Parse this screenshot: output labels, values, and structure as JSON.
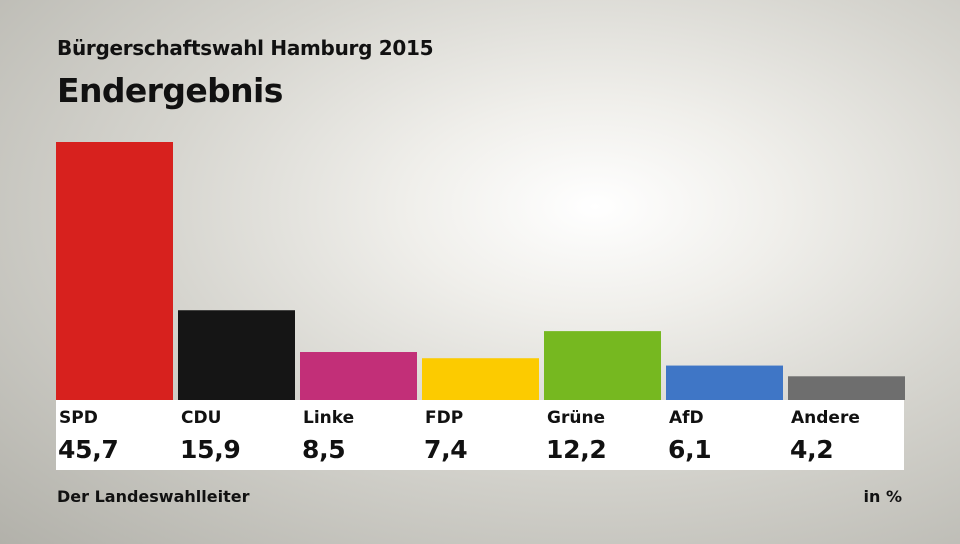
{
  "header": {
    "supertitle": "Bürgerschaftswahl Hamburg 2015",
    "title": "Endergebnis"
  },
  "footer": {
    "source": "Der Landeswahlleiter",
    "unit": "in %"
  },
  "chart_data": {
    "type": "bar",
    "title": "Endergebnis",
    "categories": [
      "SPD",
      "CDU",
      "Linke",
      "FDP",
      "Grüne",
      "AfD",
      "Andere"
    ],
    "values": [
      45.7,
      15.9,
      8.5,
      7.4,
      12.2,
      6.1,
      4.2
    ],
    "value_labels": [
      "45,7",
      "15,9",
      "8,5",
      "7,4",
      "12,2",
      "6,1",
      "4,2"
    ],
    "colors": [
      "#d7211e",
      "#151515",
      "#c22f78",
      "#fccb00",
      "#76b820",
      "#3f76c6",
      "#6e6e6e"
    ],
    "xlabel": "",
    "ylabel": "",
    "ylim": [
      0,
      45.7
    ],
    "grid": false
  }
}
